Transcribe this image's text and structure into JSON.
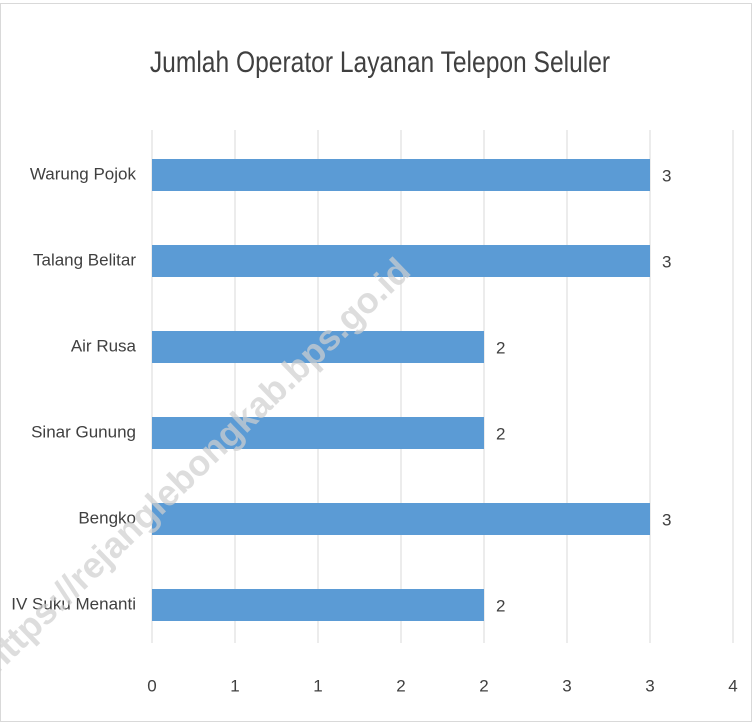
{
  "chart_data": {
    "type": "barh",
    "title": "Jumlah Operator Layanan Telepon Seluler",
    "categories": [
      "Warung Pojok",
      "Talang Belitar",
      "Air Rusa",
      "Sinar Gunung",
      "Bengko",
      "IV Suku Menanti"
    ],
    "values": [
      3,
      3,
      2,
      2,
      3,
      2
    ],
    "color": "#5b9bd5",
    "xlim": [
      0,
      3.5
    ],
    "xticks": [
      0,
      {
        "value": 0.5,
        "label": "1"
      },
      1,
      {
        "value": 1.5,
        "label": "2"
      },
      2,
      {
        "value": 2.5,
        "label": "3"
      },
      3,
      {
        "value": 3.5,
        "label": "4"
      }
    ],
    "grid": true,
    "watermark": "https://rejanglebongkab.bps.go.id"
  }
}
